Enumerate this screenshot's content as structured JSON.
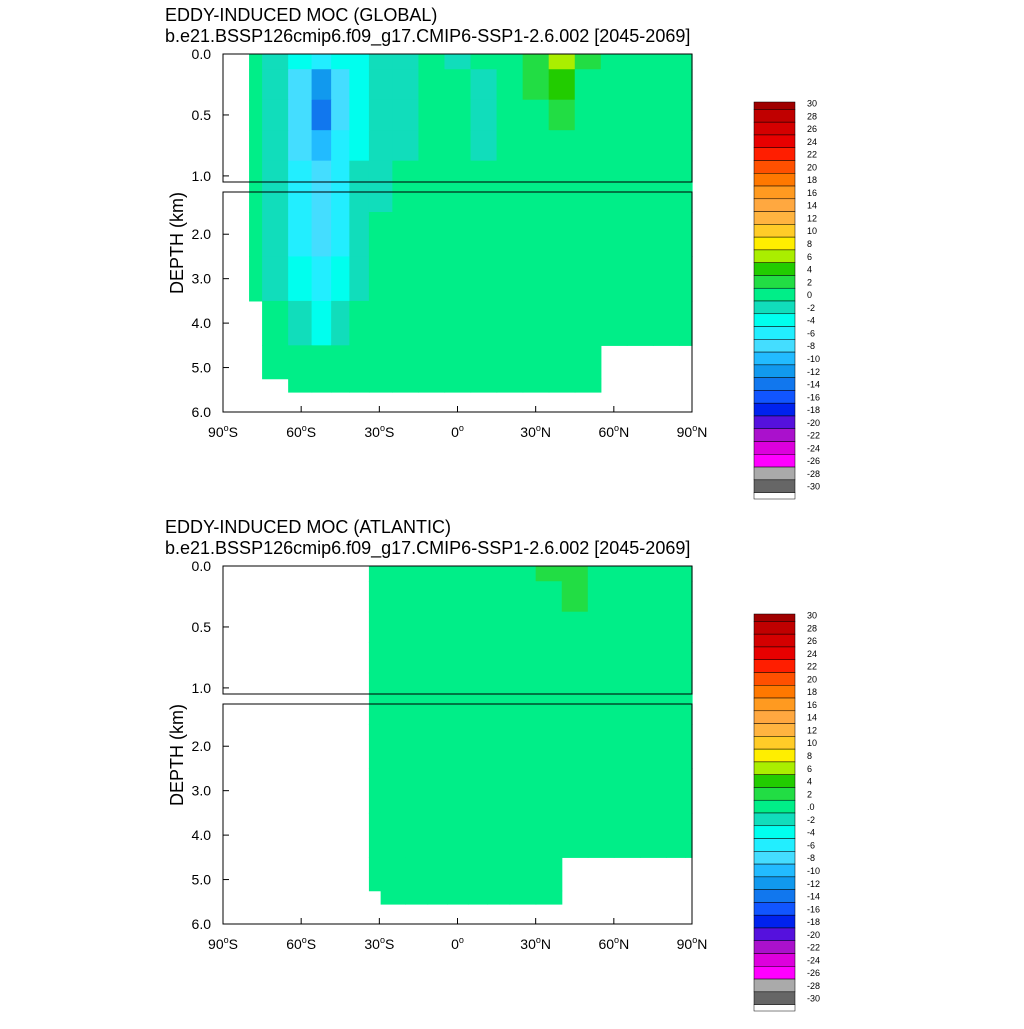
{
  "chart_data": [
    {
      "type": "heatmap",
      "title": "EDDY-INDUCED MOC (GLOBAL)",
      "subtitle": "b.e21.BSSP126cmip6.f09_g17.CMIP6-SSP1-2.6.002 [2045-2069]",
      "ylabel": "DEPTH (km)",
      "xlim": [
        -90,
        90
      ],
      "ylim": [
        0,
        6
      ],
      "x_ticks": [
        -90,
        -60,
        -30,
        0,
        30,
        60,
        90
      ],
      "x_tick_labels": [
        "90°S",
        "60°S",
        "30°S",
        "0°",
        "30°N",
        "60°N",
        "90°N"
      ],
      "upper_y_ticks": [
        0.0,
        0.5,
        1.0
      ],
      "upper_y_tick_labels": [
        "0.0",
        "0.5",
        "1.0"
      ],
      "lower_y_ticks": [
        2.0,
        3.0,
        4.0,
        5.0,
        6.0
      ],
      "lower_y_tick_labels": [
        "2.0",
        "3.0",
        "4.0",
        "5.0",
        "6.0"
      ],
      "colorbar_labels": [
        "30",
        "28",
        "26",
        "24",
        "22",
        "20",
        "18",
        "16",
        "14",
        "12",
        "10",
        "8",
        "6",
        "4",
        "2",
        "0",
        "-2",
        "-4",
        "-6",
        "-8",
        "-10",
        "-12",
        "-14",
        "-16",
        "-18",
        "-20",
        "-22",
        "-24",
        "-26",
        "-28",
        "-30"
      ],
      "x": [
        -80,
        -70,
        -60,
        -52,
        -45,
        -38,
        -30,
        -20,
        -10,
        0,
        10,
        20,
        30,
        40,
        50,
        60,
        70,
        80,
        90
      ],
      "depth": [
        0.0,
        0.25,
        0.5,
        0.75,
        1.0,
        2.0,
        3.0,
        4.0,
        5.0,
        5.5
      ],
      "values": [
        [
          -1,
          -2,
          -5,
          -6,
          -5,
          -4,
          -3,
          -2,
          -1,
          -2,
          -1,
          0,
          2,
          5,
          1,
          -1,
          -1,
          -1,
          -1
        ],
        [
          0,
          -2,
          -8,
          -12,
          -8,
          -5,
          -3,
          -2,
          -1,
          -1,
          -2,
          0,
          1,
          4,
          0,
          -1,
          -1,
          -1,
          -1
        ],
        [
          0,
          -2,
          -9,
          -14,
          -9,
          -5,
          -3,
          -2,
          -1,
          -1,
          -2,
          -1,
          0,
          2,
          0,
          -1,
          -1,
          -1,
          -1
        ],
        [
          0,
          -2,
          -8,
          -11,
          -7,
          -4,
          -2,
          -2,
          -1,
          0,
          -2,
          -1,
          -1,
          0,
          -1,
          -1,
          -1,
          -1,
          0
        ],
        [
          0,
          -2,
          -6,
          -9,
          -6,
          -3,
          -2,
          -1,
          -1,
          0,
          -1,
          -1,
          -1,
          -1,
          -1,
          -1,
          -1,
          -1,
          0
        ],
        [
          0,
          -2,
          -6,
          -8,
          -6,
          -3,
          -1,
          -1,
          0,
          0,
          0,
          0,
          0,
          -1,
          -1,
          -1,
          0,
          0,
          0
        ],
        [
          0,
          -2,
          -5,
          -6,
          -4,
          -2,
          -1,
          -1,
          0,
          0,
          0,
          0,
          0,
          -1,
          -1,
          -1,
          0,
          0,
          0
        ],
        [
          null,
          0,
          -3,
          -4,
          -2,
          -1,
          -1,
          0,
          0,
          0,
          0,
          0,
          0,
          0,
          -1,
          -1,
          0,
          0,
          0
        ],
        [
          null,
          0,
          -1,
          -1,
          -1,
          -1,
          0,
          0,
          0,
          0,
          0,
          0,
          0,
          0,
          0,
          null,
          null,
          null,
          null
        ],
        [
          null,
          null,
          -1,
          -1,
          -1,
          -1,
          0,
          0,
          0,
          0,
          0,
          0,
          0,
          0,
          0,
          null,
          null,
          null,
          null
        ]
      ]
    },
    {
      "type": "heatmap",
      "title": "EDDY-INDUCED MOC (ATLANTIC)",
      "subtitle": "b.e21.BSSP126cmip6.f09_g17.CMIP6-SSP1-2.6.002 [2045-2069]",
      "ylabel": "DEPTH (km)",
      "xlim": [
        -90,
        90
      ],
      "ylim": [
        0,
        6
      ],
      "x_ticks": [
        -90,
        -60,
        -30,
        0,
        30,
        60,
        90
      ],
      "x_tick_labels": [
        "90°S",
        "60°S",
        "30°S",
        "0°",
        "30°N",
        "60°N",
        "90°N"
      ],
      "upper_y_ticks": [
        0.0,
        0.5,
        1.0
      ],
      "upper_y_tick_labels": [
        "0.0",
        "0.5",
        "1.0"
      ],
      "lower_y_ticks": [
        2.0,
        3.0,
        4.0,
        5.0,
        6.0
      ],
      "lower_y_tick_labels": [
        "2.0",
        "3.0",
        "4.0",
        "5.0",
        "6.0"
      ],
      "colorbar_labels": [
        "30",
        "28",
        "26",
        "24",
        "22",
        "20",
        "18",
        "16",
        "14",
        "12",
        "10",
        "8",
        "6",
        "4",
        "2",
        ".0",
        "-2",
        "-4",
        "-6",
        "-8",
        "-10",
        "-12",
        "-14",
        "-16",
        "-18",
        "-20",
        "-22",
        "-24",
        "-26",
        "-28",
        "-30"
      ],
      "x": [
        -34,
        -25,
        -15,
        -8,
        0,
        8,
        15,
        25,
        35,
        45,
        55,
        65,
        75,
        85,
        90
      ],
      "depth": [
        0.0,
        0.25,
        0.5,
        0.75,
        1.0,
        2.0,
        3.0,
        4.0,
        5.0,
        5.5
      ],
      "values": [
        [
          0,
          0,
          0,
          -1,
          -1,
          0,
          0,
          0,
          1,
          1,
          0,
          0,
          0,
          0,
          -1
        ],
        [
          -1,
          0,
          0,
          -1,
          -1,
          -1,
          0,
          0,
          0,
          1,
          0,
          0,
          0,
          0,
          0
        ],
        [
          -1,
          0,
          0,
          -1,
          -1,
          -1,
          0,
          0,
          0,
          0,
          0,
          0,
          0,
          0,
          0
        ],
        [
          -1,
          0,
          0,
          -1,
          0,
          -1,
          -1,
          0,
          0,
          0,
          0,
          0,
          0,
          0,
          0
        ],
        [
          -1,
          0,
          0,
          -1,
          0,
          -1,
          -1,
          0,
          0,
          0,
          0,
          0,
          0,
          0,
          0
        ],
        [
          -1,
          -1,
          0,
          -1,
          0,
          -1,
          -1,
          -1,
          -1,
          -1,
          0,
          0,
          0,
          0,
          0
        ],
        [
          -1,
          -1,
          0,
          -1,
          0,
          -1,
          -1,
          -1,
          -1,
          -1,
          -1,
          0,
          0,
          0,
          0
        ],
        [
          -1,
          -1,
          0,
          -1,
          0,
          0,
          -1,
          -1,
          -1,
          -1,
          -1,
          0,
          0,
          0,
          0
        ],
        [
          -1,
          -1,
          0,
          0,
          0,
          0,
          0,
          0,
          0,
          null,
          null,
          null,
          null,
          null,
          null
        ],
        [
          null,
          -1,
          0,
          0,
          0,
          0,
          0,
          0,
          0,
          null,
          null,
          null,
          null,
          null,
          null
        ]
      ]
    }
  ]
}
